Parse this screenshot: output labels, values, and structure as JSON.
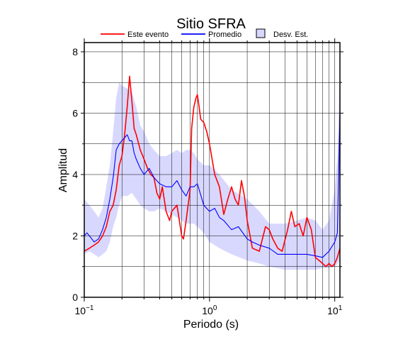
{
  "chart_data": {
    "type": "line",
    "title": "Sitio SFRA",
    "xlabel": "Periodo (s)",
    "ylabel": "Amplitud",
    "x_scale": "log",
    "xlim": [
      0.1,
      11
    ],
    "ylim": [
      0,
      8.3
    ],
    "x_ticks": [
      {
        "value": 0.1,
        "base": "10",
        "exp": "−1"
      },
      {
        "value": 1,
        "label": "10",
        "exp": "0"
      },
      {
        "value": 10,
        "label": "10",
        "exp": "1"
      }
    ],
    "y_ticks": [
      0,
      2,
      4,
      6,
      8
    ],
    "y_minor_ticks": [
      1,
      3,
      5,
      7
    ],
    "grid": true,
    "legend": {
      "placement": "top",
      "entries": [
        {
          "label": "Este evento",
          "color": "#ff0000",
          "kind": "line"
        },
        {
          "label": "Promedio",
          "color": "#0000ff",
          "kind": "line"
        },
        {
          "label": "Desv. Est.",
          "color": "#d8d8ff",
          "kind": "box"
        }
      ]
    },
    "colors": {
      "event": "#ff0000",
      "average": "#0000ff",
      "band": "#d8d8ff"
    },
    "series": [
      {
        "name": "Este evento",
        "x": [
          0.1,
          0.11,
          0.12,
          0.13,
          0.14,
          0.15,
          0.16,
          0.17,
          0.18,
          0.19,
          0.2,
          0.21,
          0.22,
          0.23,
          0.24,
          0.25,
          0.26,
          0.28,
          0.3,
          0.32,
          0.34,
          0.36,
          0.38,
          0.4,
          0.42,
          0.45,
          0.48,
          0.5,
          0.55,
          0.6,
          0.62,
          0.65,
          0.7,
          0.72,
          0.75,
          0.78,
          0.8,
          0.82,
          0.85,
          0.9,
          0.95,
          1.0,
          1.1,
          1.2,
          1.3,
          1.4,
          1.5,
          1.6,
          1.7,
          1.8,
          1.9,
          2.0,
          2.2,
          2.5,
          2.8,
          3.0,
          3.2,
          3.5,
          3.8,
          4.2,
          4.5,
          4.8,
          5.2,
          5.6,
          6.0,
          6.5,
          7.0,
          7.5,
          8.0,
          8.5,
          9.0,
          9.5,
          10.0,
          10.5,
          11.0
        ],
        "y": [
          1.5,
          1.6,
          1.7,
          1.8,
          2.0,
          2.3,
          2.8,
          3.0,
          3.5,
          4.3,
          4.6,
          5.3,
          6.2,
          7.2,
          6.4,
          5.5,
          5.3,
          4.8,
          4.5,
          4.2,
          4.0,
          3.9,
          3.4,
          3.2,
          3.6,
          2.8,
          2.5,
          2.8,
          3.0,
          2.0,
          1.9,
          2.5,
          3.5,
          5.5,
          6.2,
          6.5,
          6.6,
          6.3,
          5.8,
          5.7,
          5.4,
          5.0,
          4.0,
          3.6,
          2.7,
          3.2,
          3.6,
          3.2,
          3.0,
          3.8,
          3.3,
          2.5,
          1.6,
          1.5,
          2.3,
          2.2,
          1.9,
          1.6,
          1.5,
          2.2,
          2.8,
          2.3,
          2.4,
          2.0,
          2.6,
          2.2,
          1.3,
          1.2,
          1.1,
          1.0,
          1.1,
          1.0,
          1.1,
          1.3,
          1.6
        ]
      },
      {
        "name": "Promedio",
        "x": [
          0.1,
          0.105,
          0.11,
          0.12,
          0.13,
          0.14,
          0.15,
          0.16,
          0.17,
          0.18,
          0.19,
          0.2,
          0.21,
          0.22,
          0.23,
          0.24,
          0.25,
          0.26,
          0.28,
          0.3,
          0.33,
          0.36,
          0.4,
          0.45,
          0.5,
          0.55,
          0.6,
          0.65,
          0.7,
          0.75,
          0.8,
          0.9,
          1.0,
          1.1,
          1.2,
          1.3,
          1.5,
          1.7,
          2.0,
          2.2,
          2.5,
          3.0,
          3.5,
          4.0,
          5.0,
          6.0,
          7.0,
          8.0,
          9.0,
          10.0,
          10.5,
          11.0
        ],
        "y": [
          2.0,
          2.1,
          2.0,
          1.8,
          1.9,
          2.2,
          2.6,
          3.2,
          3.9,
          4.8,
          5.0,
          5.1,
          5.2,
          5.3,
          5.1,
          5.1,
          4.7,
          4.5,
          4.2,
          4.0,
          4.2,
          3.9,
          3.7,
          3.6,
          3.6,
          3.8,
          3.5,
          3.3,
          3.6,
          3.6,
          3.7,
          3.0,
          2.8,
          2.9,
          2.6,
          2.5,
          2.2,
          2.3,
          1.9,
          1.8,
          1.7,
          1.6,
          1.4,
          1.4,
          1.4,
          1.4,
          1.35,
          1.3,
          1.5,
          1.8,
          2.1,
          6.0
        ]
      }
    ],
    "band": {
      "name": "Desv. Est.",
      "x": [
        0.1,
        0.11,
        0.12,
        0.13,
        0.14,
        0.15,
        0.16,
        0.17,
        0.18,
        0.19,
        0.2,
        0.22,
        0.24,
        0.26,
        0.28,
        0.3,
        0.33,
        0.36,
        0.4,
        0.45,
        0.5,
        0.55,
        0.6,
        0.65,
        0.7,
        0.75,
        0.8,
        0.9,
        1.0,
        1.2,
        1.5,
        2.0,
        2.5,
        3.0,
        4.0,
        5.0,
        6.0,
        7.0,
        8.0,
        9.0,
        10.0,
        10.5,
        11.0
      ],
      "upper": [
        3.2,
        3.0,
        2.8,
        2.6,
        2.9,
        3.6,
        4.3,
        5.4,
        6.5,
        7.0,
        6.9,
        6.8,
        6.7,
        6.2,
        5.6,
        5.4,
        5.0,
        4.8,
        4.6,
        4.6,
        4.7,
        4.8,
        4.7,
        4.8,
        4.8,
        4.7,
        4.5,
        4.3,
        4.3,
        4.0,
        3.5,
        3.2,
        2.8,
        2.4,
        2.4,
        2.5,
        2.6,
        2.5,
        2.2,
        2.5,
        3.5,
        4.6,
        7.5
      ],
      "lower": [
        1.4,
        1.5,
        1.4,
        1.3,
        1.4,
        1.5,
        1.8,
        2.3,
        2.6,
        3.0,
        3.3,
        3.3,
        3.4,
        3.2,
        3.0,
        2.9,
        2.8,
        2.8,
        2.9,
        2.8,
        2.7,
        2.6,
        2.5,
        2.4,
        2.4,
        2.4,
        2.3,
        2.1,
        1.8,
        1.6,
        1.4,
        1.2,
        1.1,
        1.0,
        0.9,
        0.9,
        0.9,
        0.9,
        0.95,
        0.95,
        1.0,
        1.1,
        1.2
      ]
    }
  }
}
